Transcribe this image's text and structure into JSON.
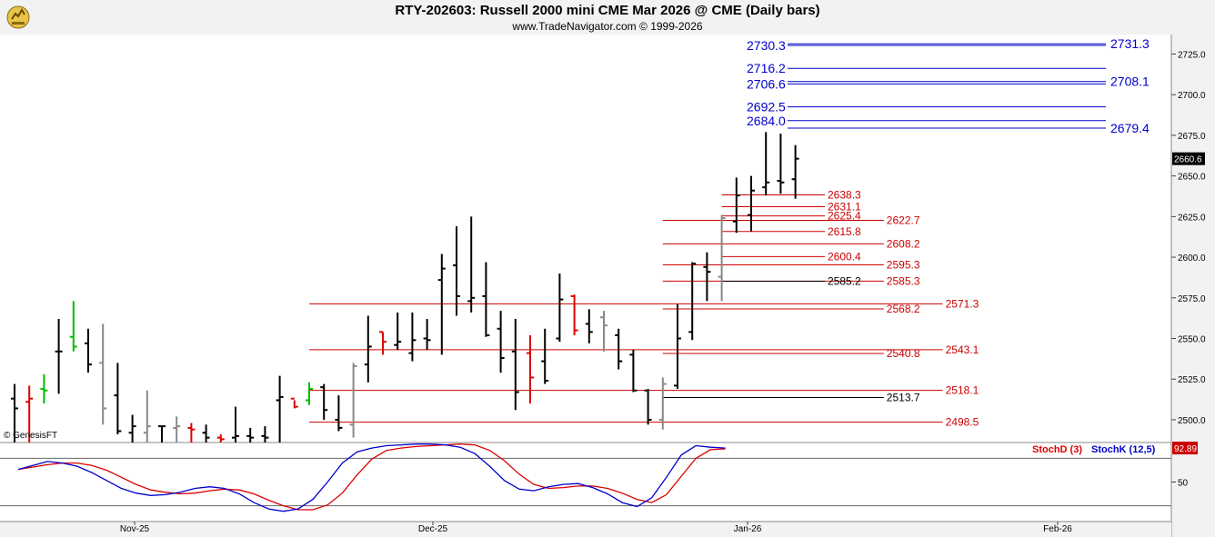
{
  "header": {
    "title": "RTY-202603:  Russell 2000 mini CME Mar 2026 @ CME  (Daily bars)",
    "subtitle": "www.TradeNavigator.com © 1999-2026",
    "watermark": "© GenesisFT",
    "logo_icon": "trade-navigator-bull-icon"
  },
  "colors": {
    "background": "#ffffff",
    "header_bg": "#f2f2f2",
    "axis_panel_bg": "#f2f2f2",
    "blue_levels": "#0000cc",
    "red_levels": "#cc0000",
    "bar_up": "#000000",
    "bar_red": "#dd0000",
    "bar_grey": "#888888",
    "bar_green": "#00bb00",
    "stoch_d": "#dd0000",
    "stoch_k": "#0000cc"
  },
  "chart_data": [
    {
      "type": "ohlc",
      "title": "RTY-202603:  Russell 2000 mini CME Mar 2026 @ CME  (Daily bars)",
      "x_labels": [
        "Nov-25",
        "Dec-25",
        "Jan-26",
        "Feb-26"
      ],
      "y_ticks": [
        2500.0,
        2525.0,
        2550.0,
        2575.0,
        2600.0,
        2625.0,
        2650.0,
        2675.0,
        2700.0,
        2725.0
      ],
      "ylim": [
        2486,
        2737
      ],
      "last_price_label": "2660.6",
      "last_price": 2660.6,
      "bars": [
        {
          "o": 2513,
          "h": 2522,
          "l": 2486,
          "c": 2507,
          "color": "black"
        },
        {
          "o": 2511,
          "h": 2521,
          "l": 2486,
          "c": 2513,
          "color": "red"
        },
        {
          "o": 2519,
          "h": 2528,
          "l": 2510,
          "c": 2518,
          "color": "green"
        },
        {
          "o": 2542,
          "h": 2562,
          "l": 2516,
          "c": 2542,
          "color": "black"
        },
        {
          "o": 2551,
          "h": 2573,
          "l": 2542,
          "c": 2545,
          "color": "green"
        },
        {
          "o": 2547,
          "h": 2556,
          "l": 2529,
          "c": 2534,
          "color": "black"
        },
        {
          "o": 2535,
          "h": 2559,
          "l": 2497,
          "c": 2507,
          "color": "grey"
        },
        {
          "o": 2515,
          "h": 2535,
          "l": 2491,
          "c": 2493,
          "color": "black"
        },
        {
          "o": 2492,
          "h": 2503,
          "l": 2486,
          "c": 2496,
          "color": "black"
        },
        {
          "o": 2492,
          "h": 2518,
          "l": 2486,
          "c": 2496,
          "color": "grey"
        },
        {
          "o": 2496,
          "h": 2496,
          "l": 2486,
          "c": 2496,
          "color": "black"
        },
        {
          "o": 2495,
          "h": 2502,
          "l": 2486,
          "c": 2496,
          "color": "grey"
        },
        {
          "o": 2495,
          "h": 2498,
          "l": 2486,
          "c": 2494,
          "color": "red"
        },
        {
          "o": 2492,
          "h": 2497,
          "l": 2486,
          "c": 2489,
          "color": "black"
        },
        {
          "o": 2489,
          "h": 2491,
          "l": 2486,
          "c": 2488,
          "color": "red"
        },
        {
          "o": 2489,
          "h": 2508,
          "l": 2486,
          "c": 2490,
          "color": "black"
        },
        {
          "o": 2490,
          "h": 2495,
          "l": 2486,
          "c": 2489,
          "color": "black"
        },
        {
          "o": 2490,
          "h": 2496,
          "l": 2486,
          "c": 2489,
          "color": "black"
        },
        {
          "o": 2512,
          "h": 2527,
          "l": 2486,
          "c": 2514,
          "color": "black"
        },
        {
          "o": 2513,
          "h": 2512,
          "l": 2507,
          "c": 2508,
          "color": "red"
        },
        {
          "o": 2512,
          "h": 2523,
          "l": 2509,
          "c": 2519,
          "color": "green"
        },
        {
          "o": 2520,
          "h": 2522,
          "l": 2500,
          "c": 2506,
          "color": "black"
        },
        {
          "o": 2500,
          "h": 2515,
          "l": 2493,
          "c": 2495,
          "color": "black"
        },
        {
          "o": 2497,
          "h": 2535,
          "l": 2489,
          "c": 2533,
          "color": "grey"
        },
        {
          "o": 2534,
          "h": 2564,
          "l": 2523,
          "c": 2545,
          "color": "black"
        },
        {
          "o": 2554,
          "h": 2554,
          "l": 2540,
          "c": 2548,
          "color": "red"
        },
        {
          "o": 2546,
          "h": 2566,
          "l": 2543,
          "c": 2548,
          "color": "black"
        },
        {
          "o": 2541,
          "h": 2566,
          "l": 2536,
          "c": 2549,
          "color": "black"
        },
        {
          "o": 2550,
          "h": 2562,
          "l": 2543,
          "c": 2549,
          "color": "black"
        },
        {
          "o": 2586,
          "h": 2602,
          "l": 2540,
          "c": 2593,
          "color": "black"
        },
        {
          "o": 2595,
          "h": 2619,
          "l": 2564,
          "c": 2576,
          "color": "black"
        },
        {
          "o": 2573,
          "h": 2625,
          "l": 2566,
          "c": 2575,
          "color": "black"
        },
        {
          "o": 2576,
          "h": 2597,
          "l": 2551,
          "c": 2552,
          "color": "black"
        },
        {
          "o": 2556,
          "h": 2567,
          "l": 2529,
          "c": 2538,
          "color": "black"
        },
        {
          "o": 2542,
          "h": 2562,
          "l": 2506,
          "c": 2517,
          "color": "black"
        },
        {
          "o": 2541,
          "h": 2552,
          "l": 2510,
          "c": 2526,
          "color": "red"
        },
        {
          "o": 2536,
          "h": 2556,
          "l": 2522,
          "c": 2524,
          "color": "black"
        },
        {
          "o": 2550,
          "h": 2590,
          "l": 2548,
          "c": 2574,
          "color": "black"
        },
        {
          "o": 2576,
          "h": 2577,
          "l": 2552,
          "c": 2555,
          "color": "red"
        },
        {
          "o": 2559,
          "h": 2568,
          "l": 2547,
          "c": 2554,
          "color": "black"
        },
        {
          "o": 2563,
          "h": 2567,
          "l": 2542,
          "c": 2558,
          "color": "grey"
        },
        {
          "o": 2552,
          "h": 2556,
          "l": 2531,
          "c": 2536,
          "color": "black"
        },
        {
          "o": 2540,
          "h": 2543,
          "l": 2517,
          "c": 2518,
          "color": "black"
        },
        {
          "o": 2518,
          "h": 2519,
          "l": 2497,
          "c": 2500,
          "color": "black"
        },
        {
          "o": 2500,
          "h": 2526,
          "l": 2494,
          "c": 2522,
          "color": "grey"
        },
        {
          "o": 2521,
          "h": 2571,
          "l": 2519,
          "c": 2550,
          "color": "black"
        },
        {
          "o": 2554,
          "h": 2597,
          "l": 2549,
          "c": 2596,
          "color": "black"
        },
        {
          "o": 2594,
          "h": 2603,
          "l": 2573,
          "c": 2591,
          "color": "black"
        },
        {
          "o": 2588,
          "h": 2626,
          "l": 2573,
          "c": 2624,
          "color": "grey"
        },
        {
          "o": 2622,
          "h": 2649,
          "l": 2615,
          "c": 2638,
          "color": "black"
        },
        {
          "o": 2626,
          "h": 2650,
          "l": 2616,
          "c": 2641,
          "color": "black"
        },
        {
          "o": 2643,
          "h": 2677,
          "l": 2638,
          "c": 2646,
          "color": "black"
        },
        {
          "o": 2647,
          "h": 2676,
          "l": 2639,
          "c": 2646,
          "color": "black"
        },
        {
          "o": 2648,
          "h": 2669,
          "l": 2636,
          "c": 2660.6,
          "color": "black"
        }
      ]
    },
    {
      "type": "hlines",
      "blue_levels": [
        {
          "label_left": "2730.3",
          "label_right": "2731.3",
          "value": 2730.3,
          "value_right": 2731.3
        },
        {
          "label_left": "2716.2",
          "label_right": "",
          "value": 2716.2
        },
        {
          "label_left": "2706.6",
          "label_right": "2708.1",
          "value": 2706.6,
          "value_right": 2708.1
        },
        {
          "label_left": "2692.5",
          "label_right": "",
          "value": 2692.5
        },
        {
          "label_left": "2684.0",
          "label_right": "2679.4",
          "value": 2684.0,
          "value_right": 2679.4
        }
      ],
      "red_levels": [
        {
          "label": "2638.3",
          "value": 2638.3,
          "start_day": 48,
          "end_day": 55
        },
        {
          "label": "2631.1",
          "value": 2631.1,
          "start_day": 48,
          "end_day": 55
        },
        {
          "label": "2625.4",
          "value": 2625.4,
          "start_day": 48,
          "end_day": 55
        },
        {
          "label": "2622.7",
          "value": 2622.7,
          "start_day": 44,
          "end_day": 59
        },
        {
          "label": "2615.8",
          "value": 2615.8,
          "start_day": 48,
          "end_day": 55
        },
        {
          "label": "2608.2",
          "value": 2608.2,
          "start_day": 44,
          "end_day": 59
        },
        {
          "label": "2600.4",
          "value": 2600.4,
          "start_day": 48,
          "end_day": 55
        },
        {
          "label": "2595.3",
          "value": 2595.3,
          "start_day": 44,
          "end_day": 59
        },
        {
          "label": "2585.3",
          "value": 2585.3,
          "start_day": 44,
          "end_day": 59
        },
        {
          "label": "2571.3",
          "value": 2571.3,
          "start_day": 20,
          "end_day": 63
        },
        {
          "label": "2568.2",
          "value": 2568.2,
          "start_day": 44,
          "end_day": 59
        },
        {
          "label": "2543.1",
          "value": 2543.1,
          "start_day": 20,
          "end_day": 63
        },
        {
          "label": "2540.8",
          "value": 2540.8,
          "start_day": 44,
          "end_day": 59
        },
        {
          "label": "2518.1",
          "value": 2518.1,
          "start_day": 20,
          "end_day": 63
        },
        {
          "label": "2498.5",
          "value": 2498.5,
          "start_day": 20,
          "end_day": 63
        }
      ],
      "black_levels": [
        {
          "label": "2585.2",
          "value": 2585.2,
          "start_day": 48,
          "end_day": 55
        },
        {
          "label": "2513.7",
          "value": 2513.7,
          "start_day": 44,
          "end_day": 59
        }
      ]
    },
    {
      "type": "line",
      "title": "",
      "legend": [
        "StochD (3)",
        "StochK (12,5)"
      ],
      "y_ticks": [
        50
      ],
      "ylim": [
        0,
        100
      ],
      "last_value_label": "92.89",
      "series": [
        {
          "name": "StochD (3)",
          "color": "red",
          "values": [
            66,
            69,
            72,
            74,
            74,
            71,
            65,
            56,
            47,
            40,
            37,
            35,
            36,
            39,
            41,
            40,
            35,
            27,
            20,
            15,
            15,
            21,
            36,
            59,
            79,
            90,
            93,
            95,
            96,
            97,
            98,
            97,
            90,
            77,
            60,
            47,
            42,
            43,
            45,
            45,
            42,
            36,
            28,
            24,
            34,
            57,
            80,
            91,
            92
          ]
        },
        {
          "name": "StochK (12,5)",
          "color": "blue",
          "values": [
            66,
            71,
            76,
            74,
            70,
            62,
            52,
            42,
            36,
            33,
            34,
            37,
            42,
            44,
            42,
            35,
            24,
            16,
            13,
            16,
            28,
            50,
            74,
            88,
            93,
            96,
            97,
            98,
            98,
            97,
            94,
            86,
            70,
            52,
            41,
            39,
            44,
            47,
            48,
            43,
            35,
            24,
            19,
            30,
            56,
            84,
            96,
            94,
            93
          ]
        }
      ]
    }
  ]
}
